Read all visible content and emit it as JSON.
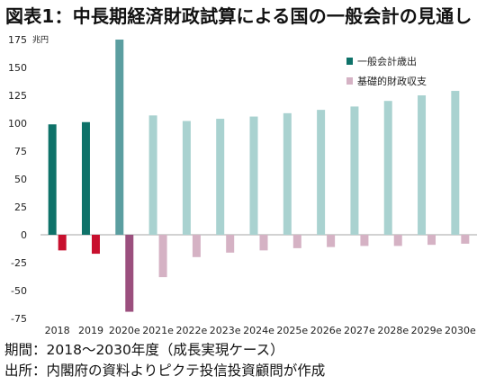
{
  "title": "図表1：中長期経済財政試算による国の一般会計の見通し",
  "chart_data": {
    "type": "bar",
    "unit_label": "兆円",
    "categories": [
      "2018",
      "2019",
      "2020e",
      "2021e",
      "2022e",
      "2023e",
      "2024e",
      "2025e",
      "2026e",
      "2027e",
      "2028e",
      "2029e",
      "2030e"
    ],
    "ylim": [
      -75,
      175
    ],
    "yticks": [
      175,
      150,
      125,
      100,
      75,
      50,
      25,
      0,
      -25,
      -50,
      -75
    ],
    "grid": false,
    "legend_position": "top-right",
    "series": [
      {
        "name": "一般会計歳出",
        "values": [
          99,
          101,
          175,
          107,
          102,
          104,
          106,
          109,
          112,
          115,
          120,
          125,
          129
        ],
        "colors": [
          "#0e7269",
          "#0e7269",
          "#5b9ea0",
          "#a9d2d0",
          "#a9d2d0",
          "#a9d2d0",
          "#a9d2d0",
          "#a9d2d0",
          "#a9d2d0",
          "#a9d2d0",
          "#a9d2d0",
          "#a9d2d0",
          "#a9d2d0"
        ],
        "legend_color": "#0e7269"
      },
      {
        "name": "基礎的財政収支",
        "values": [
          -14,
          -17,
          -69,
          -38,
          -20,
          -16,
          -14,
          -12,
          -11,
          -10,
          -10,
          -9,
          -8
        ],
        "colors": [
          "#c8102e",
          "#c8102e",
          "#9b4f7e",
          "#d5b2c4",
          "#d5b2c4",
          "#d5b2c4",
          "#d5b2c4",
          "#d5b2c4",
          "#d5b2c4",
          "#d5b2c4",
          "#d5b2c4",
          "#d5b2c4",
          "#d5b2c4"
        ],
        "legend_color": "#d5b2c4"
      }
    ]
  },
  "notes": {
    "period": "期間：2018～2030年度（成長実現ケース）",
    "source": "出所：内閣府の資料よりピクテ投信投資顧問が作成"
  }
}
